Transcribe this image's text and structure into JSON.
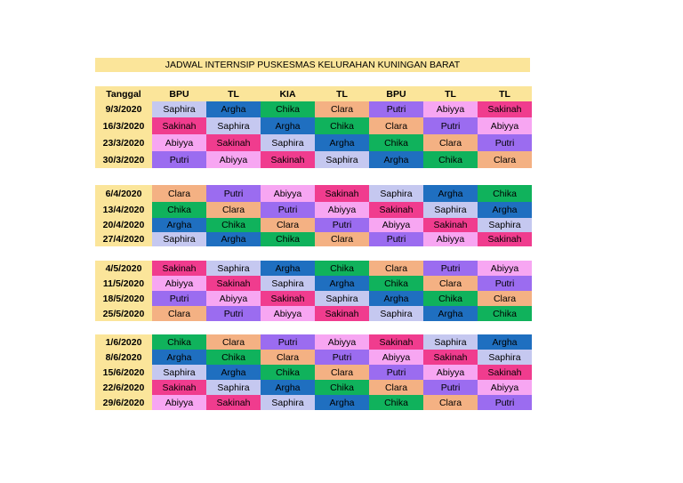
{
  "title": "JADWAL INTERNSIP PUSKESMAS KELURAHAN KUNINGAN BARAT",
  "columns": [
    "Tanggal",
    "BPU",
    "TL",
    "KIA",
    "TL",
    "BPU",
    "TL",
    "TL"
  ],
  "colors": {
    "Saphira": "#c5c8f0",
    "Argha": "#1f6fc0",
    "Chika": "#10b25c",
    "Clara": "#f4b183",
    "Putri": "#9b6cf0",
    "Abiyya": "#f7a6f2",
    "Sakinah": "#f03c8e"
  },
  "blocks": [
    {
      "rows": [
        {
          "date": "9/3/2020",
          "cells": [
            "Saphira",
            "Argha",
            "Chika",
            "Clara",
            "Putri",
            "Abiyya",
            "Sakinah"
          ]
        },
        {
          "date": "16/3/2020",
          "cells": [
            "Sakinah",
            "Saphira",
            "Argha",
            "Chika",
            "Clara",
            "Putri",
            "Abiyya"
          ]
        },
        {
          "date": "23/3/2020",
          "cells": [
            "Abiyya",
            "Sakinah",
            "Saphira",
            "Argha",
            "Chika",
            "Clara",
            "Putri"
          ]
        },
        {
          "date": "30/3/2020",
          "cells": [
            "Putri",
            "Abiyya",
            "Sakinah",
            "Saphira",
            "Argha",
            "Chika",
            "Clara"
          ]
        }
      ]
    },
    {
      "rows": [
        {
          "date": "6/4/2020",
          "cells": [
            "Clara",
            "Putri",
            "Abiyya",
            "Sakinah",
            "Saphira",
            "Argha",
            "Chika"
          ]
        },
        {
          "date": "13/4/2020",
          "cells": [
            "Chika",
            "Clara",
            "Putri",
            "Abiyya",
            "Sakinah",
            "Saphira",
            "Argha"
          ]
        },
        {
          "date": "20/4/2020",
          "cells": [
            "Argha",
            "Chika",
            "Clara",
            "Putri",
            "Abiyya",
            "Sakinah",
            "Saphira"
          ]
        },
        {
          "date": "27/4/2020",
          "cells": [
            "Saphira",
            "Argha",
            "Chika",
            "Clara",
            "Putri",
            "Abiyya",
            "Sakinah"
          ]
        }
      ]
    },
    {
      "rows": [
        {
          "date": "4/5/2020",
          "cells": [
            "Sakinah",
            "Saphira",
            "Argha",
            "Chika",
            "Clara",
            "Putri",
            "Abiyya"
          ]
        },
        {
          "date": "11/5/2020",
          "cells": [
            "Abiyya",
            "Sakinah",
            "Saphira",
            "Argha",
            "Chika",
            "Clara",
            "Putri"
          ]
        },
        {
          "date": "18/5/2020",
          "cells": [
            "Putri",
            "Abiyya",
            "Sakinah",
            "Saphira",
            "Argha",
            "Chika",
            "Clara"
          ]
        },
        {
          "date": "25/5/2020",
          "cells": [
            "Clara",
            "Putri",
            "Abiyya",
            "Sakinah",
            "Saphira",
            "Argha",
            "Chika"
          ]
        }
      ]
    },
    {
      "rows": [
        {
          "date": "1/6/2020",
          "cells": [
            "Chika",
            "Clara",
            "Putri",
            "Abiyya",
            "Sakinah",
            "Saphira",
            "Argha"
          ]
        },
        {
          "date": "8/6/2020",
          "cells": [
            "Argha",
            "Chika",
            "Clara",
            "Putri",
            "Abiyya",
            "Sakinah",
            "Saphira"
          ]
        },
        {
          "date": "15/6/2020",
          "cells": [
            "Saphira",
            "Argha",
            "Chika",
            "Clara",
            "Putri",
            "Abiyya",
            "Sakinah"
          ]
        },
        {
          "date": "22/6/2020",
          "cells": [
            "Sakinah",
            "Saphira",
            "Argha",
            "Chika",
            "Clara",
            "Putri",
            "Abiyya"
          ]
        },
        {
          "date": "29/6/2020",
          "cells": [
            "Abiyya",
            "Sakinah",
            "Saphira",
            "Argha",
            "Chika",
            "Clara",
            "Putri"
          ]
        }
      ]
    }
  ]
}
